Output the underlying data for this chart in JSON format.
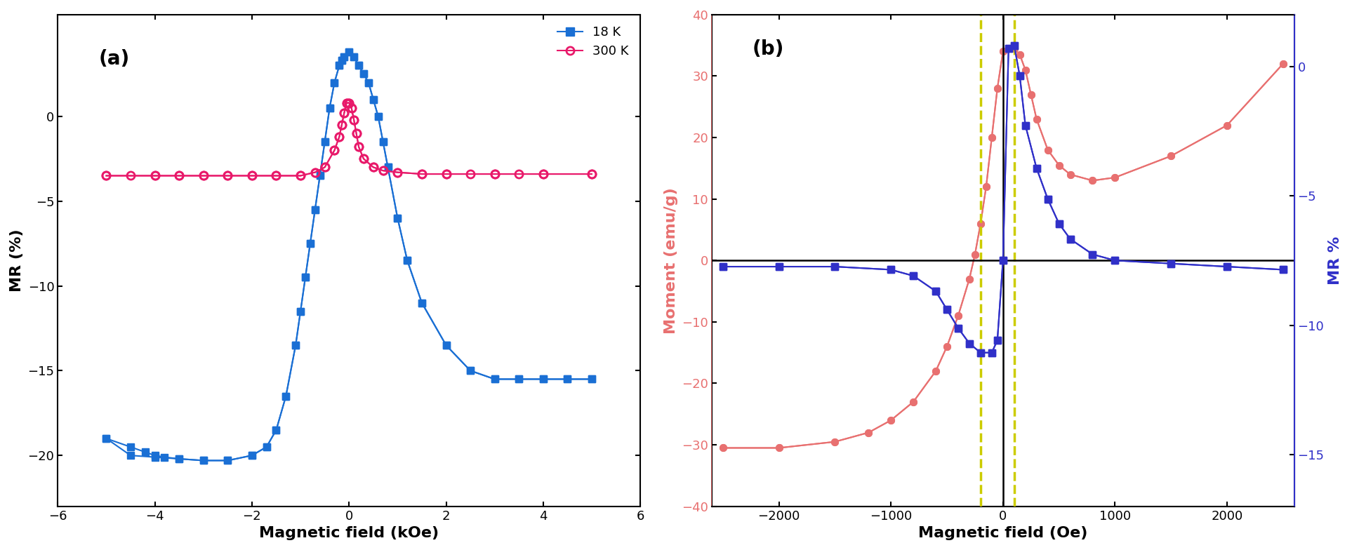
{
  "panel_a": {
    "title": "(a)",
    "xlabel": "Magnetic field (kOe)",
    "ylabel": "MR (%)",
    "xlim": [
      -6,
      6
    ],
    "ylim": [
      -23,
      6
    ],
    "blue_18K": {
      "label": "18 K",
      "color": "#1A6FD4",
      "marker": "s",
      "branch1_x": [
        -5.0,
        -4.5,
        -4.2,
        -4.0,
        -3.8,
        -3.5,
        -3.0,
        -2.5,
        -2.0,
        -1.7,
        -1.5,
        -1.3,
        -1.1,
        -1.0,
        -0.9,
        -0.8,
        -0.7,
        -0.6,
        -0.5,
        -0.4,
        -0.3,
        -0.2,
        -0.15,
        -0.1,
        0.0,
        0.1,
        0.2,
        0.3,
        0.4,
        0.5,
        0.6,
        0.7,
        0.8,
        1.0,
        1.2,
        1.5,
        2.0,
        2.5,
        3.0,
        3.5,
        4.0,
        4.5,
        5.0
      ],
      "branch1_y": [
        -19.0,
        -19.5,
        -19.8,
        -20.0,
        -20.1,
        -20.2,
        -20.3,
        -20.3,
        -20.0,
        -19.5,
        -18.5,
        -16.5,
        -13.5,
        -11.5,
        -9.5,
        -7.5,
        -5.5,
        -3.5,
        -1.5,
        0.5,
        2.0,
        3.0,
        3.3,
        3.5,
        3.8,
        3.5,
        3.0,
        2.5,
        2.0,
        1.0,
        0.0,
        -1.5,
        -3.0,
        -6.0,
        -8.5,
        -11.0,
        -13.5,
        -15.0,
        -15.5,
        -15.5,
        -15.5,
        -15.5,
        -15.5
      ],
      "branch2_x": [
        5.0,
        4.5,
        4.0,
        3.5,
        3.0,
        2.5,
        2.0,
        1.5,
        1.2,
        1.0,
        0.8,
        0.7,
        0.6,
        0.5,
        0.4,
        0.3,
        0.2,
        0.1,
        0.0,
        -0.1,
        -0.15,
        -0.2,
        -0.3,
        -0.4,
        -0.5,
        -0.6,
        -0.7,
        -0.8,
        -0.9,
        -1.0,
        -1.1,
        -1.3,
        -1.5,
        -1.7,
        -2.0,
        -2.5,
        -3.0,
        -3.5,
        -4.0,
        -4.5,
        -5.0
      ],
      "branch2_y": [
        -15.5,
        -15.5,
        -15.5,
        -15.5,
        -15.5,
        -15.0,
        -13.5,
        -11.0,
        -8.5,
        -6.0,
        -3.0,
        -1.5,
        0.0,
        1.0,
        2.0,
        2.5,
        3.0,
        3.5,
        3.8,
        3.5,
        3.3,
        3.0,
        2.0,
        0.5,
        -1.5,
        -3.5,
        -5.5,
        -7.5,
        -9.5,
        -11.5,
        -13.5,
        -16.5,
        -18.5,
        -19.5,
        -20.0,
        -20.3,
        -20.3,
        -20.2,
        -20.1,
        -20.0,
        -19.0
      ]
    },
    "pink_300K": {
      "label": "300 K",
      "color": "#E8196A",
      "marker": "o",
      "branch1_x": [
        -5.0,
        -4.5,
        -4.0,
        -3.5,
        -3.0,
        -2.5,
        -2.0,
        -1.5,
        -1.0,
        -0.7,
        -0.5,
        -0.3,
        -0.2,
        -0.15,
        -0.1,
        -0.05,
        0.0,
        0.05,
        0.1,
        0.15,
        0.2,
        0.3,
        0.5,
        0.7,
        1.0,
        1.5,
        2.0,
        2.5,
        3.0,
        3.5,
        4.0,
        5.0
      ],
      "branch1_y": [
        -3.5,
        -3.5,
        -3.5,
        -3.5,
        -3.5,
        -3.5,
        -3.5,
        -3.5,
        -3.5,
        -3.3,
        -3.0,
        -2.0,
        -1.2,
        -0.5,
        0.2,
        0.8,
        0.8,
        0.5,
        -0.2,
        -1.0,
        -1.8,
        -2.5,
        -3.0,
        -3.2,
        -3.3,
        -3.4,
        -3.4,
        -3.4,
        -3.4,
        -3.4,
        -3.4,
        -3.4
      ],
      "branch2_x": [
        5.0,
        4.0,
        3.0,
        2.0,
        1.5,
        1.0,
        0.7,
        0.5,
        0.3,
        0.2,
        0.15,
        0.1,
        0.05,
        0.0,
        -0.05,
        -0.1,
        -0.15,
        -0.2,
        -0.3,
        -0.5,
        -0.7,
        -1.0,
        -1.5,
        -2.0,
        -2.5,
        -3.0,
        -3.5,
        -4.0,
        -5.0
      ],
      "branch2_y": [
        -3.4,
        -3.4,
        -3.4,
        -3.4,
        -3.4,
        -3.3,
        -3.2,
        -3.0,
        -2.5,
        -1.8,
        -1.0,
        -0.2,
        0.5,
        0.8,
        0.8,
        0.2,
        -0.5,
        -1.2,
        -2.0,
        -3.0,
        -3.3,
        -3.5,
        -3.5,
        -3.5,
        -3.5,
        -3.5,
        -3.5,
        -3.5,
        -3.5
      ]
    },
    "yticks": [
      0,
      -5,
      -10,
      -15,
      -20
    ],
    "xticks": [
      -6,
      -4,
      -2,
      0,
      2,
      4,
      6
    ]
  },
  "panel_b": {
    "title": "(b)",
    "xlabel": "Magnetic field (Oe)",
    "ylabel_left": "Moment (emu/g)",
    "ylabel_right": "MR %",
    "xlim": [
      -2600,
      2600
    ],
    "ylim_left": [
      -40,
      40
    ],
    "ylim_right": [
      -17,
      2
    ],
    "xticks": [
      -2000,
      -1000,
      0,
      1000,
      2000
    ],
    "yticks_left": [
      -40,
      -30,
      -20,
      -10,
      0,
      10,
      20,
      30,
      40
    ],
    "yticks_right": [
      0,
      -5,
      -10,
      -15
    ],
    "moment_color": "#E87070",
    "mr_color": "#3030C8",
    "moment_branch1_x": [
      -2500,
      -2000,
      -1500,
      -1200,
      -1000,
      -800,
      -600,
      -500,
      -400,
      -300,
      -250,
      -200,
      -150,
      -100,
      -50,
      0,
      50,
      100,
      150,
      200,
      250,
      300,
      400,
      500,
      600,
      800,
      1000,
      1500,
      2000,
      2500
    ],
    "moment_branch1_y": [
      -30.5,
      -30.5,
      -29.5,
      -28.0,
      -26.0,
      -23.0,
      -18.0,
      -14.0,
      -9.0,
      -3.0,
      1.0,
      6.0,
      12.0,
      20.0,
      28.0,
      34.0,
      34.5,
      34.5,
      33.5,
      31.0,
      27.0,
      23.0,
      18.0,
      15.5,
      14.0,
      13.0,
      13.5,
      17.0,
      22.0,
      32.0
    ],
    "moment_branch2_x": [
      2500,
      2000,
      1500,
      1000,
      800,
      600,
      500,
      400,
      300,
      250,
      200,
      150,
      100,
      50,
      0,
      -50,
      -100,
      -150,
      -200,
      -250,
      -300,
      -400,
      -500,
      -600,
      -800,
      -1000,
      -1200,
      -1500,
      -2000,
      -2500
    ],
    "moment_branch2_y": [
      32.0,
      22.0,
      17.0,
      13.5,
      13.0,
      14.0,
      15.5,
      18.0,
      23.0,
      27.0,
      31.0,
      33.5,
      34.5,
      34.5,
      34.0,
      28.0,
      20.0,
      12.0,
      6.0,
      1.0,
      -3.0,
      -9.0,
      -14.0,
      -18.0,
      -23.0,
      -26.0,
      -28.0,
      -29.5,
      -30.5,
      -30.5
    ],
    "mr_branch1_x": [
      -2500,
      -2000,
      -1500,
      -1000,
      -800,
      -600,
      -500,
      -400,
      -300,
      -200,
      -100,
      -50,
      0,
      50,
      100,
      150,
      200,
      300,
      400,
      500,
      600,
      800,
      1000,
      1500,
      2000,
      2500
    ],
    "mr_branch1_y": [
      -1.0,
      -1.0,
      -1.0,
      -1.5,
      -2.5,
      -5.0,
      -8.0,
      -11.0,
      -13.5,
      -15.0,
      -15.0,
      -13.0,
      0.0,
      34.5,
      35.0,
      30.0,
      22.0,
      15.0,
      10.0,
      6.0,
      3.5,
      1.0,
      0.0,
      -0.5,
      -1.0,
      -1.5
    ],
    "mr_branch2_x": [
      2500,
      2000,
      1500,
      1000,
      800,
      600,
      500,
      400,
      300,
      200,
      150,
      100,
      50,
      0,
      -50,
      -100,
      -200,
      -300,
      -400,
      -500,
      -600,
      -800,
      -1000,
      -1500,
      -2000,
      -2500
    ],
    "mr_branch2_y": [
      -1.5,
      -1.0,
      -0.5,
      0.0,
      1.0,
      3.5,
      6.0,
      10.0,
      15.0,
      22.0,
      30.0,
      35.0,
      34.5,
      0.0,
      -13.0,
      -15.0,
      -15.0,
      -13.5,
      -11.0,
      -8.0,
      -5.0,
      -2.5,
      -1.5,
      -1.0,
      -1.0,
      -1.0
    ],
    "dashed_x1": -200,
    "dashed_x2": 100,
    "dashed_color": "#CCCC00"
  }
}
